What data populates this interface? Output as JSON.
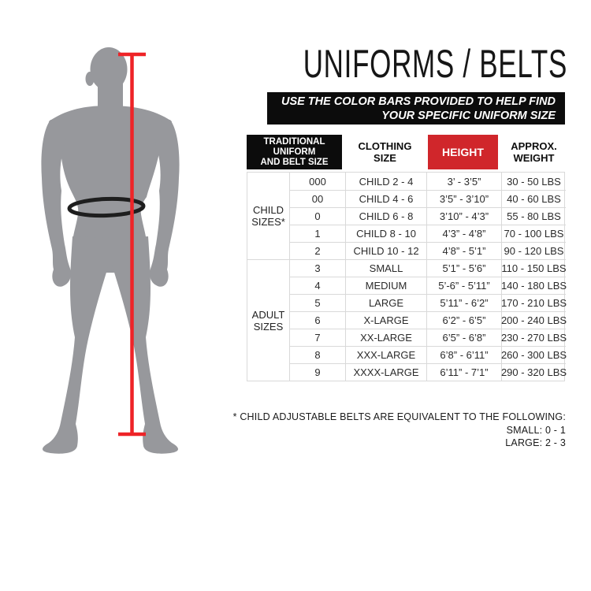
{
  "title": "UNIFORMS / BELTS",
  "banner": {
    "lines": [
      "USE THE COLOR BARS PROVIDED TO HELP FIND",
      "YOUR SPECIFIC UNIFORM SIZE"
    ]
  },
  "colors": {
    "header_black": "#0c0c0c",
    "header_red": "#d0262b",
    "measure_line_red": "#ee2327",
    "silhouette_gray": "#97989c",
    "grid_gray": "#d9d9d9"
  },
  "figure": {
    "silhouette": "standing-male-front",
    "height_line": "vertical red measuring line with end caps",
    "waist_ring": "black ellipse around waist"
  },
  "table": {
    "headers": {
      "group_lines": [
        "TRADITIONAL",
        "UNIFORM",
        "AND BELT SIZE"
      ],
      "clothing_lines": [
        "CLOTHING",
        "SIZE"
      ],
      "height": "HEIGHT",
      "weight_lines": [
        "APPROX.",
        "WEIGHT"
      ]
    },
    "groups": [
      {
        "label": "CHILD SIZES*",
        "rows": [
          {
            "size": "000",
            "clothing": "CHILD 2 - 4",
            "height": "3’ - 3’5”",
            "weight": "30 - 50 LBS"
          },
          {
            "size": "00",
            "clothing": "CHILD 4 - 6",
            "height": "3’5” - 3’10”",
            "weight": "40 - 60 LBS"
          },
          {
            "size": "0",
            "clothing": "CHILD 6 - 8",
            "height": "3’10” - 4’3”",
            "weight": "55 - 80 LBS"
          },
          {
            "size": "1",
            "clothing": "CHILD 8 - 10",
            "height": "4’3” - 4’8”",
            "weight": "70 - 100 LBS"
          },
          {
            "size": "2",
            "clothing": "CHILD 10 - 12",
            "height": "4’8” - 5’1”",
            "weight": "90 - 120 LBS"
          }
        ]
      },
      {
        "label": "ADULT SIZES",
        "rows": [
          {
            "size": "3",
            "clothing": "SMALL",
            "height": "5’1” - 5’6”",
            "weight": "110 - 150 LBS"
          },
          {
            "size": "4",
            "clothing": "MEDIUM",
            "height": "5’-6” - 5’11”",
            "weight": "140 - 180 LBS"
          },
          {
            "size": "5",
            "clothing": "LARGE",
            "height": "5’11” - 6’2”",
            "weight": "170 - 210 LBS"
          },
          {
            "size": "6",
            "clothing": "X-LARGE",
            "height": "6’2” - 6’5”",
            "weight": "200 - 240 LBS"
          },
          {
            "size": "7",
            "clothing": "XX-LARGE",
            "height": "6’5” - 6’8”",
            "weight": "230 - 270 LBS"
          },
          {
            "size": "8",
            "clothing": "XXX-LARGE",
            "height": "6’8” - 6’11”",
            "weight": "260 - 300 LBS"
          },
          {
            "size": "9",
            "clothing": "XXXX-LARGE",
            "height": "6’11” - 7’1”",
            "weight": "290 - 320 LBS"
          }
        ]
      }
    ]
  },
  "footnote": [
    "* CHILD ADJUSTABLE BELTS ARE EQUIVALENT TO THE FOLLOWING:",
    "SMALL: 0 - 1",
    "LARGE: 2 - 3"
  ]
}
